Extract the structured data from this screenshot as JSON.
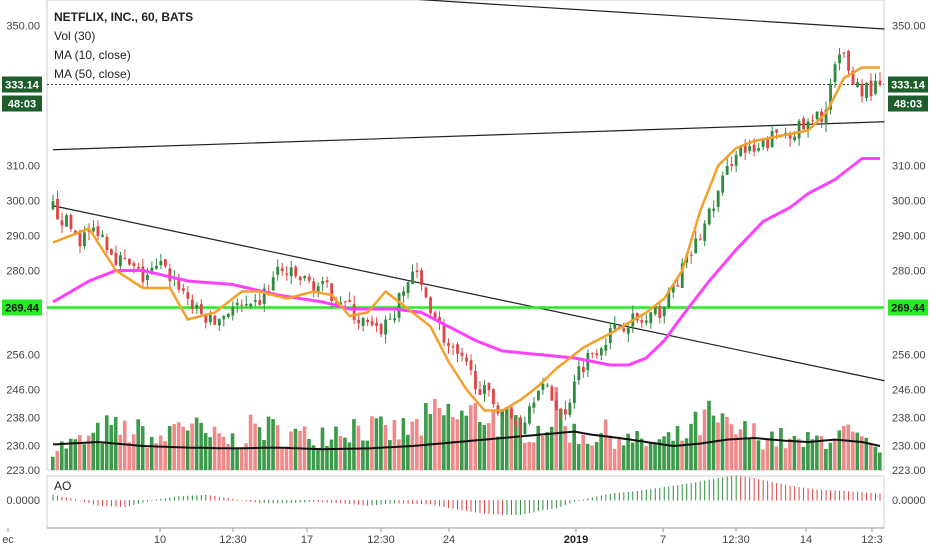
{
  "legend": {
    "title": "NETFLIX, INC., 60, BATS",
    "vol": "Vol (30)",
    "ma10": "MA (10, close)",
    "ma50": "MA (50, close)"
  },
  "ao_label": "AO",
  "colors": {
    "up": "#2e8b3e",
    "down": "#e04545",
    "vol_up": "#3d9a4a",
    "vol_down": "#f08a8a",
    "ma10": "#f5a02a",
    "ma50": "#ff40ff",
    "vol_ma": "#111111",
    "level_line": "#22ee22",
    "badge_dark": "#1f5d2c"
  },
  "badges": {
    "price": "333.14",
    "countdown": "48:03",
    "level": "269.44"
  },
  "chart_data": {
    "type": "candlestick",
    "title": "NETFLIX, INC., 60, BATS",
    "price_axis": {
      "ticks": [
        "350.00",
        "333.14",
        "310.00",
        "300.00",
        "290.00",
        "280.00",
        "269.44",
        "256.00",
        "246.00",
        "238.00",
        "230.00",
        "223.00"
      ],
      "ylim": [
        223,
        355
      ]
    },
    "x_axis": {
      "ticks": [
        "ec",
        "10",
        "12:30",
        "17",
        "12:30",
        "24",
        "2019",
        "7",
        "12:30",
        "14",
        "12:3"
      ],
      "bold_ticks": [
        "2019"
      ]
    },
    "ao_axis": {
      "ticks": [
        "0.0000"
      ]
    },
    "last_price": 333.14,
    "horizontal_level": 269.44,
    "trendlines": [
      {
        "from": [
          0,
          298.5
        ],
        "to": [
          185,
          248.5
        ]
      },
      {
        "from": [
          0,
          314.5
        ],
        "to": [
          185,
          322.5
        ]
      },
      {
        "from": [
          62,
          359
        ],
        "to": [
          185,
          349
        ]
      }
    ],
    "ohlc_anchor_closes": [
      [
        0,
        298
      ],
      [
        6,
        289
      ],
      [
        10,
        292
      ],
      [
        14,
        284
      ],
      [
        20,
        278
      ],
      [
        24,
        281
      ],
      [
        28,
        276
      ],
      [
        32,
        268
      ],
      [
        36,
        265
      ],
      [
        40,
        270
      ],
      [
        44,
        268
      ],
      [
        48,
        275
      ],
      [
        50,
        280
      ],
      [
        54,
        278
      ],
      [
        60,
        275
      ],
      [
        64,
        272
      ],
      [
        68,
        266
      ],
      [
        72,
        262
      ],
      [
        76,
        268
      ],
      [
        80,
        280
      ],
      [
        84,
        270
      ],
      [
        88,
        258
      ],
      [
        92,
        252
      ],
      [
        96,
        245
      ],
      [
        100,
        240
      ],
      [
        104,
        235
      ],
      [
        108,
        248
      ],
      [
        112,
        242
      ],
      [
        114,
        238
      ],
      [
        116,
        250
      ],
      [
        120,
        257
      ],
      [
        124,
        262
      ],
      [
        128,
        266
      ],
      [
        132,
        265
      ],
      [
        136,
        270
      ],
      [
        140,
        280
      ],
      [
        144,
        290
      ],
      [
        148,
        302
      ],
      [
        152,
        315
      ],
      [
        156,
        313
      ],
      [
        160,
        318
      ],
      [
        164,
        320
      ],
      [
        168,
        321
      ],
      [
        172,
        326
      ],
      [
        174,
        338
      ],
      [
        176,
        341
      ],
      [
        178,
        334
      ],
      [
        180,
        332
      ]
    ],
    "ma10_anchors": [
      [
        0,
        288
      ],
      [
        8,
        292
      ],
      [
        14,
        280
      ],
      [
        20,
        275
      ],
      [
        26,
        275
      ],
      [
        30,
        266
      ],
      [
        36,
        268
      ],
      [
        42,
        274
      ],
      [
        46,
        274
      ],
      [
        52,
        272
      ],
      [
        58,
        274
      ],
      [
        62,
        273
      ],
      [
        66,
        267
      ],
      [
        70,
        268
      ],
      [
        74,
        274
      ],
      [
        78,
        270
      ],
      [
        84,
        264
      ],
      [
        88,
        254
      ],
      [
        92,
        246
      ],
      [
        96,
        240
      ],
      [
        100,
        240
      ],
      [
        104,
        243
      ],
      [
        108,
        247
      ],
      [
        112,
        252
      ],
      [
        118,
        258
      ],
      [
        124,
        262
      ],
      [
        128,
        265
      ],
      [
        132,
        268
      ],
      [
        136,
        272
      ],
      [
        140,
        280
      ],
      [
        144,
        297
      ],
      [
        148,
        310
      ],
      [
        152,
        315
      ],
      [
        156,
        317
      ],
      [
        160,
        318
      ],
      [
        164,
        319
      ],
      [
        168,
        320
      ],
      [
        172,
        325
      ],
      [
        174,
        330
      ],
      [
        176,
        335
      ],
      [
        180,
        338
      ]
    ],
    "ma50_anchors": [
      [
        0,
        271
      ],
      [
        8,
        277
      ],
      [
        14,
        280
      ],
      [
        20,
        280
      ],
      [
        30,
        277
      ],
      [
        40,
        276
      ],
      [
        50,
        273
      ],
      [
        60,
        271
      ],
      [
        66,
        269
      ],
      [
        70,
        269
      ],
      [
        76,
        269
      ],
      [
        82,
        268
      ],
      [
        88,
        264
      ],
      [
        94,
        260
      ],
      [
        100,
        257
      ],
      [
        108,
        256
      ],
      [
        116,
        255
      ],
      [
        124,
        253
      ],
      [
        128,
        253
      ],
      [
        132,
        255
      ],
      [
        136,
        260
      ],
      [
        140,
        267
      ],
      [
        146,
        277
      ],
      [
        152,
        286
      ],
      [
        158,
        294
      ],
      [
        164,
        298
      ],
      [
        168,
        302
      ],
      [
        174,
        306
      ],
      [
        180,
        312
      ]
    ],
    "volume_anchors": [
      [
        0,
        0.3
      ],
      [
        8,
        0.4
      ],
      [
        12,
        0.55
      ],
      [
        20,
        0.5
      ],
      [
        24,
        0.35
      ],
      [
        28,
        0.7
      ],
      [
        34,
        0.45
      ],
      [
        40,
        0.4
      ],
      [
        46,
        0.6
      ],
      [
        50,
        0.5
      ],
      [
        56,
        0.45
      ],
      [
        62,
        0.55
      ],
      [
        68,
        0.6
      ],
      [
        74,
        0.5
      ],
      [
        80,
        0.55
      ],
      [
        86,
        0.75
      ],
      [
        92,
        0.7
      ],
      [
        96,
        0.8
      ],
      [
        100,
        0.65
      ],
      [
        104,
        0.6
      ],
      [
        108,
        0.55
      ],
      [
        112,
        0.8
      ],
      [
        116,
        0.5
      ],
      [
        120,
        0.45
      ],
      [
        124,
        0.5
      ],
      [
        128,
        0.4
      ],
      [
        134,
        0.35
      ],
      [
        140,
        0.45
      ],
      [
        146,
        0.7
      ],
      [
        150,
        0.55
      ],
      [
        154,
        0.5
      ],
      [
        160,
        0.45
      ],
      [
        166,
        0.35
      ],
      [
        170,
        0.4
      ],
      [
        174,
        0.5
      ],
      [
        178,
        0.45
      ],
      [
        184,
        0.2
      ]
    ],
    "volume_ma_anchors": [
      [
        0,
        0.32
      ],
      [
        10,
        0.35
      ],
      [
        20,
        0.3
      ],
      [
        30,
        0.28
      ],
      [
        40,
        0.27
      ],
      [
        50,
        0.28
      ],
      [
        60,
        0.26
      ],
      [
        70,
        0.27
      ],
      [
        80,
        0.3
      ],
      [
        90,
        0.35
      ],
      [
        100,
        0.4
      ],
      [
        110,
        0.45
      ],
      [
        116,
        0.48
      ],
      [
        120,
        0.44
      ],
      [
        126,
        0.4
      ],
      [
        132,
        0.35
      ],
      [
        138,
        0.3
      ],
      [
        144,
        0.33
      ],
      [
        150,
        0.38
      ],
      [
        156,
        0.4
      ],
      [
        162,
        0.37
      ],
      [
        168,
        0.35
      ],
      [
        174,
        0.38
      ],
      [
        180,
        0.35
      ],
      [
        184,
        0.3
      ]
    ],
    "ao_anchors": [
      [
        0,
        0.2
      ],
      [
        6,
        0.0
      ],
      [
        10,
        -0.2
      ],
      [
        16,
        -0.25
      ],
      [
        22,
        0.0
      ],
      [
        28,
        0.15
      ],
      [
        34,
        0.2
      ],
      [
        40,
        0.05
      ],
      [
        46,
        -0.1
      ],
      [
        52,
        -0.1
      ],
      [
        58,
        -0.05
      ],
      [
        64,
        -0.1
      ],
      [
        70,
        -0.2
      ],
      [
        76,
        -0.1
      ],
      [
        84,
        -0.15
      ],
      [
        90,
        -0.35
      ],
      [
        96,
        -0.5
      ],
      [
        100,
        -0.55
      ],
      [
        104,
        -0.55
      ],
      [
        108,
        -0.4
      ],
      [
        112,
        -0.3
      ],
      [
        116,
        -0.05
      ],
      [
        120,
        0.1
      ],
      [
        124,
        0.25
      ],
      [
        130,
        0.35
      ],
      [
        136,
        0.5
      ],
      [
        142,
        0.65
      ],
      [
        148,
        0.85
      ],
      [
        152,
        0.95
      ],
      [
        156,
        0.85
      ],
      [
        160,
        0.7
      ],
      [
        164,
        0.55
      ],
      [
        170,
        0.4
      ],
      [
        176,
        0.35
      ],
      [
        180,
        0.3
      ],
      [
        184,
        0.25
      ]
    ]
  }
}
